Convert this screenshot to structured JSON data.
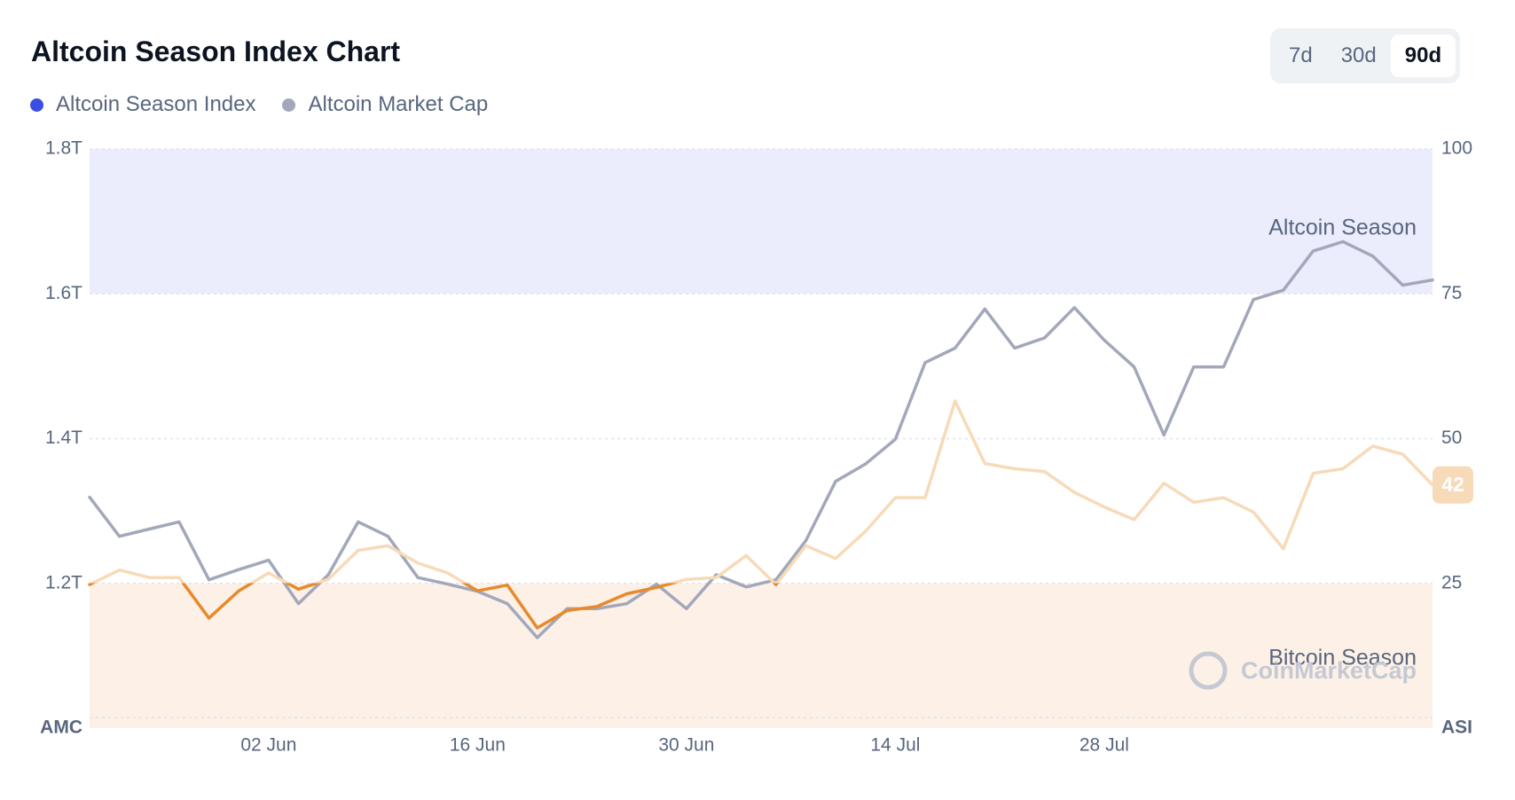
{
  "header": {
    "title": "Altcoin Season Index Chart",
    "ranges": [
      "7d",
      "30d",
      "90d"
    ],
    "active_range": 2
  },
  "chart_data": {
    "type": "line",
    "x": [
      null,
      null,
      null,
      null,
      null,
      null,
      "02 Jun",
      null,
      null,
      null,
      null,
      null,
      null,
      "16 Jun",
      null,
      null,
      null,
      null,
      null,
      null,
      "30 Jun",
      null,
      null,
      null,
      null,
      null,
      null,
      "14 Jul",
      null,
      null,
      null,
      null,
      null,
      null,
      "28 Jul",
      null,
      null,
      null,
      null,
      null,
      null,
      null,
      null,
      null,
      null,
      null
    ],
    "y_axis_label": "AMC",
    "y2_axis_label": "ASI",
    "ylim": [
      1.0,
      1.8
    ],
    "yticks": [
      {
        "value": 1.2,
        "label": "1.2T"
      },
      {
        "value": 1.4,
        "label": "1.4T"
      },
      {
        "value": 1.6,
        "label": "1.6T"
      },
      {
        "value": 1.8,
        "label": "1.8T"
      }
    ],
    "y2lim": [
      0,
      100
    ],
    "y2ticks": [
      25,
      50,
      75,
      100
    ],
    "grid": true,
    "bands": [
      {
        "label": "Altcoin Season",
        "from": 75,
        "to": 100,
        "color": "#ebedfd",
        "axis": "y2"
      },
      {
        "label": "Bitcoin Season",
        "from": 0,
        "to": 25,
        "color": "#fdf1e7",
        "axis": "y2"
      }
    ],
    "watermark": "CoinMarketCap",
    "series": [
      {
        "name": "Altcoin Season Index",
        "axis": "y2",
        "color": "#e8892b",
        "faded_color": "#f7dab8",
        "legend_color": "#3b4ee3",
        "values": [
          24.8,
          27.3,
          26,
          26,
          19,
          23.7,
          26.8,
          24,
          25.7,
          30.7,
          31.5,
          28.5,
          26.8,
          23.7,
          24.7,
          17.3,
          20.3,
          21,
          23.2,
          24.3,
          25.7,
          26,
          29.8,
          24.8,
          31.5,
          29.3,
          34,
          39.8,
          39.8,
          56.5,
          45.7,
          44.8,
          44.3,
          40.7,
          38.2,
          36,
          42.3,
          39,
          39.8,
          37.3,
          31,
          44,
          44.8,
          48.7,
          47.3,
          42
        ],
        "value_labels": [
          null,
          null,
          null,
          null,
          null,
          null,
          null,
          null,
          null,
          null,
          null,
          null,
          null,
          null,
          null,
          null,
          null,
          null,
          null,
          null,
          null,
          null,
          null,
          null,
          null,
          null,
          null,
          null,
          null,
          null,
          null,
          null,
          null,
          null,
          null,
          null,
          null,
          null,
          null,
          null,
          null,
          null,
          null,
          null,
          null,
          "42"
        ]
      },
      {
        "name": "Altcoin Market Cap",
        "axis": "y",
        "color": "#a2a8ba",
        "legend_color": "#a2a8ba",
        "values": [
          1.319,
          1.265,
          1.275,
          1.285,
          1.205,
          1.219,
          1.232,
          1.172,
          1.212,
          1.285,
          1.265,
          1.208,
          1.199,
          1.189,
          1.172,
          1.125,
          1.165,
          1.165,
          1.172,
          1.199,
          1.165,
          1.212,
          1.195,
          1.205,
          1.259,
          1.341,
          1.365,
          1.399,
          1.505,
          1.525,
          1.579,
          1.525,
          1.539,
          1.581,
          1.536,
          1.499,
          1.405,
          1.499,
          1.499,
          1.592,
          1.605,
          1.659,
          1.672,
          1.652,
          1.612,
          1.619
        ]
      }
    ]
  }
}
